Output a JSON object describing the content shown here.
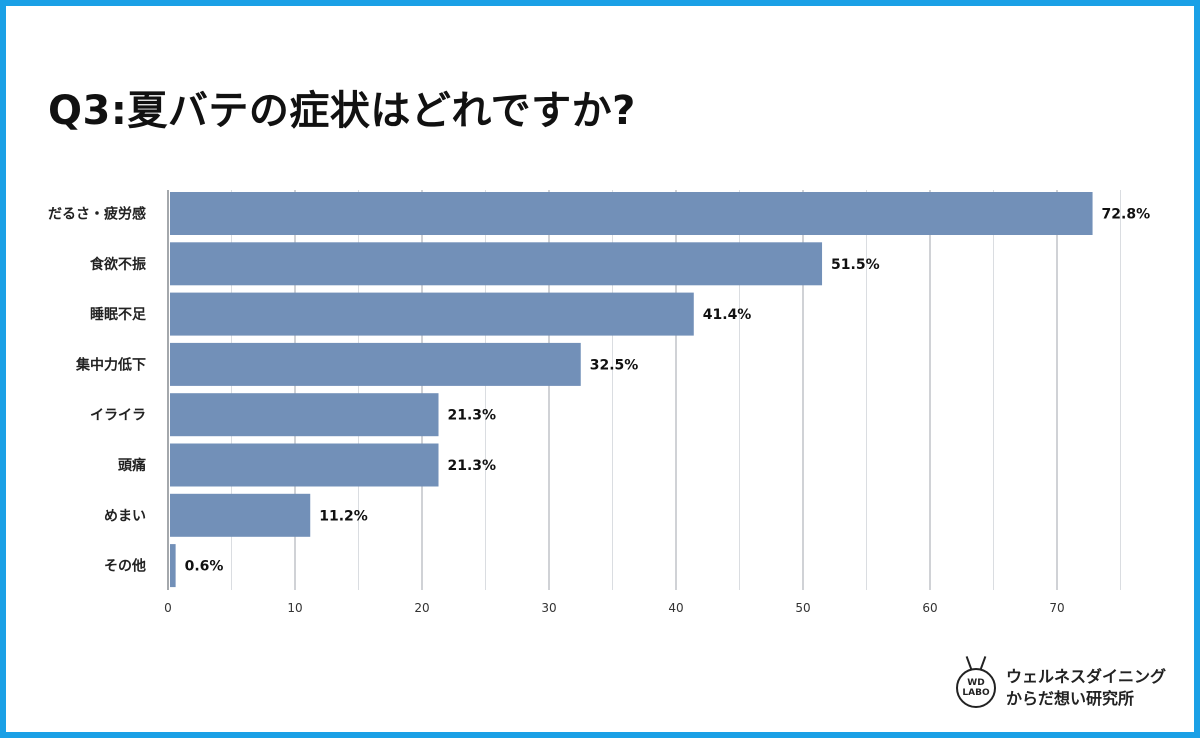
{
  "title": "Q3:夏バテの症状はどれですか?",
  "logo": {
    "mark_line1": "WD",
    "mark_line2": "LABO",
    "text_line1": "ウェルネスダイニング",
    "text_line2": "からだ想い研究所"
  },
  "colors": {
    "frame": "#1aa0e6",
    "bar": "#7290b8",
    "grid": "#b0b4ba"
  },
  "chart_data": {
    "type": "bar",
    "orientation": "horizontal",
    "categories": [
      "だるさ・疲労感",
      "食欲不振",
      "睡眠不足",
      "集中力低下",
      "イライラ",
      "頭痛",
      "めまい",
      "その他"
    ],
    "values": [
      72.8,
      51.5,
      41.4,
      32.5,
      21.3,
      21.3,
      11.2,
      0.6
    ],
    "value_labels": [
      "72.8%",
      "51.5%",
      "41.4%",
      "32.5%",
      "21.3%",
      "21.3%",
      "11.2%",
      "0.6%"
    ],
    "xlim": [
      0,
      75
    ],
    "xticks": [
      0,
      10,
      20,
      30,
      40,
      50,
      60,
      70
    ],
    "grid": true,
    "legend": "none"
  }
}
